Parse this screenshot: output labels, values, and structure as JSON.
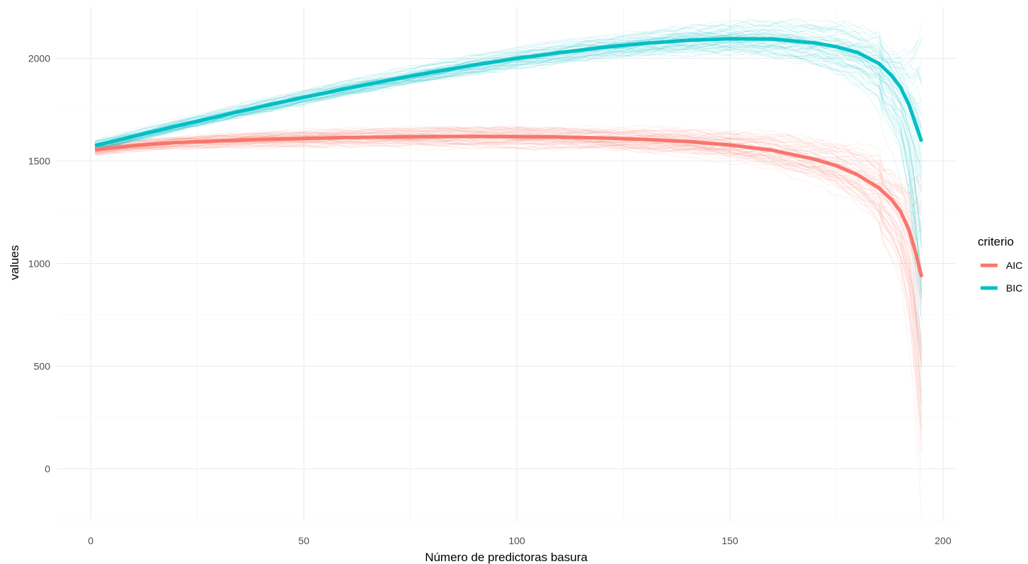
{
  "chart_data": {
    "type": "line",
    "xlabel": "Número de predictoras basura",
    "ylabel": "values",
    "xlim": [
      -8,
      203
    ],
    "ylim": [
      -250,
      2250
    ],
    "x_ticks": [
      0,
      50,
      100,
      150,
      200
    ],
    "y_ticks": [
      0,
      500,
      1000,
      1500,
      2000
    ],
    "x_tick_labels": [
      "0",
      "50",
      "100",
      "150",
      "200"
    ],
    "y_tick_labels": [
      "0",
      "500",
      "1000",
      "1500",
      "2000"
    ],
    "grid": true,
    "legend": {
      "title": "criterio",
      "position": "right"
    },
    "series": [
      {
        "name": "AIC",
        "color": "#F8766D",
        "mean": {
          "x": [
            1,
            10,
            20,
            30,
            40,
            50,
            60,
            70,
            80,
            90,
            100,
            110,
            120,
            130,
            140,
            150,
            160,
            170,
            175,
            180,
            185,
            188,
            190,
            192,
            193,
            194,
            195
          ],
          "y": [
            1555,
            1575,
            1590,
            1598,
            1605,
            1610,
            1614,
            1617,
            1619,
            1620,
            1619,
            1617,
            1612,
            1605,
            1595,
            1578,
            1552,
            1508,
            1477,
            1432,
            1368,
            1310,
            1255,
            1165,
            1095,
            1020,
            935
          ]
        },
        "spread": [
          30,
          30,
          30,
          32,
          35,
          38,
          40,
          42,
          44,
          46,
          48,
          50,
          52,
          55,
          60,
          68,
          80,
          95,
          110,
          130,
          160,
          190,
          220,
          320,
          420,
          560,
          700
        ]
      },
      {
        "name": "BIC",
        "color": "#00BFC4",
        "mean": {
          "x": [
            1,
            10,
            20,
            30,
            40,
            50,
            60,
            70,
            80,
            90,
            100,
            110,
            120,
            130,
            140,
            150,
            160,
            170,
            175,
            180,
            185,
            188,
            190,
            192,
            193,
            194,
            195
          ],
          "y": [
            1575,
            1620,
            1670,
            1718,
            1765,
            1810,
            1853,
            1894,
            1932,
            1968,
            2000,
            2028,
            2053,
            2073,
            2088,
            2096,
            2094,
            2075,
            2057,
            2028,
            1975,
            1915,
            1860,
            1775,
            1715,
            1655,
            1595
          ]
        },
        "spread": [
          30,
          30,
          30,
          32,
          34,
          36,
          38,
          40,
          42,
          45,
          48,
          52,
          55,
          60,
          66,
          75,
          85,
          100,
          115,
          135,
          165,
          200,
          240,
          340,
          440,
          600,
          760
        ]
      }
    ]
  }
}
